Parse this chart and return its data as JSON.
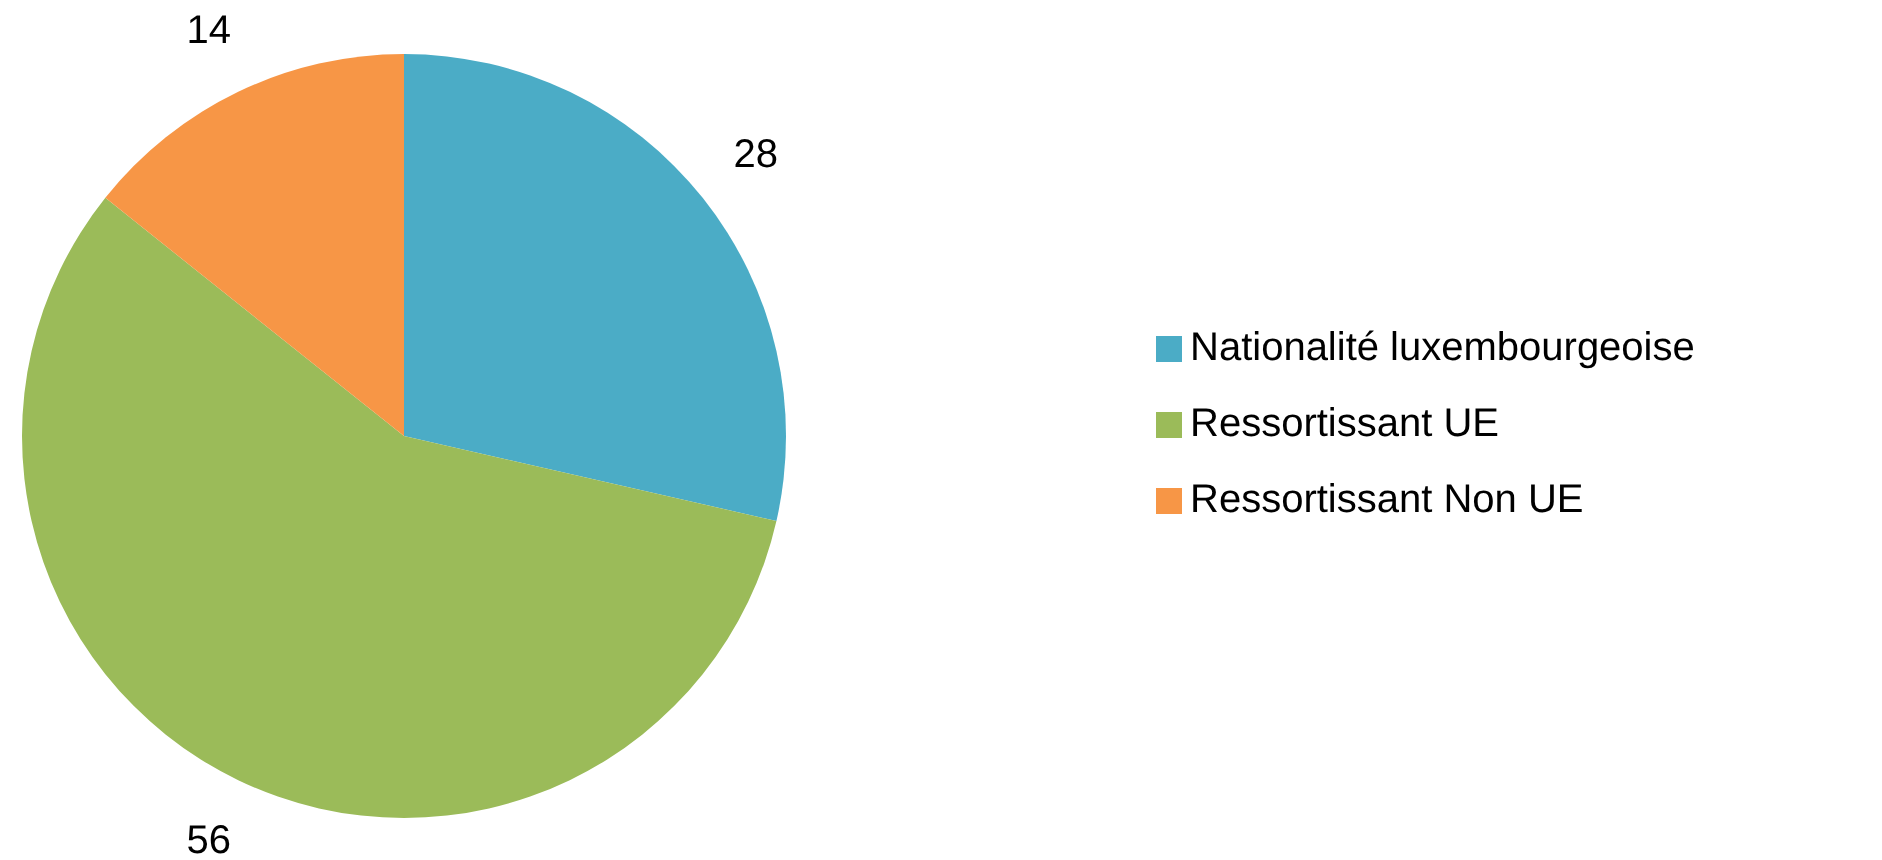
{
  "chart_data": {
    "type": "pie",
    "categories": [
      "Nationalité luxembourgeoise",
      "Ressortissant UE",
      "Ressortissant Non UE"
    ],
    "values": [
      28,
      56,
      14
    ],
    "colors": [
      "#4bacc6",
      "#9bbb59",
      "#f79646"
    ],
    "data_labels": true,
    "legend": "right"
  }
}
